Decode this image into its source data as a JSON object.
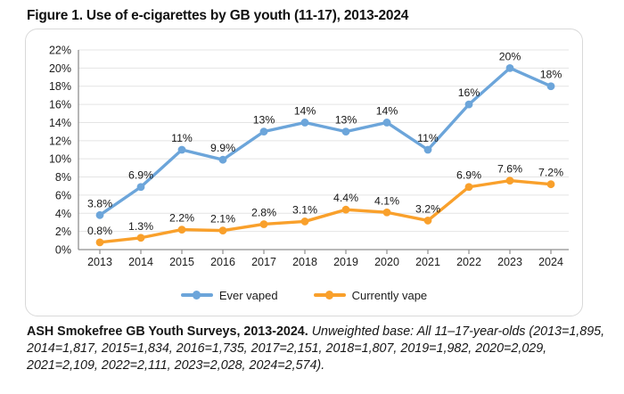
{
  "title": "Figure 1. Use of e-cigarettes by GB youth (11-17), 2013-2024",
  "colors": {
    "ever_vaped": "#6CA5DA",
    "currently_vape": "#F9A02B",
    "grid": "#E4E4E4",
    "axis": "#8F8F8F",
    "text": "#1C1C1C",
    "card_border": "#D9D9D9"
  },
  "chart_data": {
    "type": "line",
    "title": "Figure 1. Use of e-cigarettes by GB youth (11-17), 2013-2024",
    "categories": [
      "2013",
      "2014",
      "2015",
      "2016",
      "2017",
      "2018",
      "2019",
      "2020",
      "2021",
      "2022",
      "2023",
      "2024"
    ],
    "series": [
      {
        "name": "Ever vaped",
        "color": "#6CA5DA",
        "values": [
          3.8,
          6.9,
          11,
          9.9,
          13,
          14,
          13,
          14,
          11,
          16,
          20,
          18
        ],
        "labels": [
          "3.8%",
          "6.9%",
          "11%",
          "9.9%",
          "13%",
          "14%",
          "13%",
          "14%",
          "11%",
          "16%",
          "20%",
          "18%"
        ]
      },
      {
        "name": "Currently vape",
        "color": "#F9A02B",
        "values": [
          0.8,
          1.3,
          2.2,
          2.1,
          2.8,
          3.1,
          4.4,
          4.1,
          3.2,
          6.9,
          7.6,
          7.2
        ],
        "labels": [
          "0.8%",
          "1.3%",
          "2.2%",
          "2.1%",
          "2.8%",
          "3.1%",
          "4.4%",
          "4.1%",
          "3.2%",
          "6.9%",
          "7.6%",
          "7.2%"
        ]
      }
    ],
    "xlabel": "",
    "ylabel": "",
    "ylim": [
      0,
      22
    ],
    "ytick_labels": [
      "0%",
      "2%",
      "4%",
      "6%",
      "8%",
      "10%",
      "12%",
      "14%",
      "16%",
      "18%",
      "20%",
      "22%"
    ],
    "grid": true,
    "legend_position": "bottom"
  },
  "legend": [
    {
      "label": "Ever vaped",
      "color": "#6CA5DA"
    },
    {
      "label": "Currently vape",
      "color": "#F9A02B"
    }
  ],
  "source": {
    "bold": "ASH Smokefree GB Youth Surveys, 2013-2024.",
    "italic": " Unweighted base: All 11–17-year-olds (2013=1,895, 2014=1,817, 2015=1,834, 2016=1,735, 2017=2,151, 2018=1,807, 2019=1,982, 2020=2,029, 2021=2,109, 2022=2,111, 2023=2,028, 2024=2,574)."
  }
}
